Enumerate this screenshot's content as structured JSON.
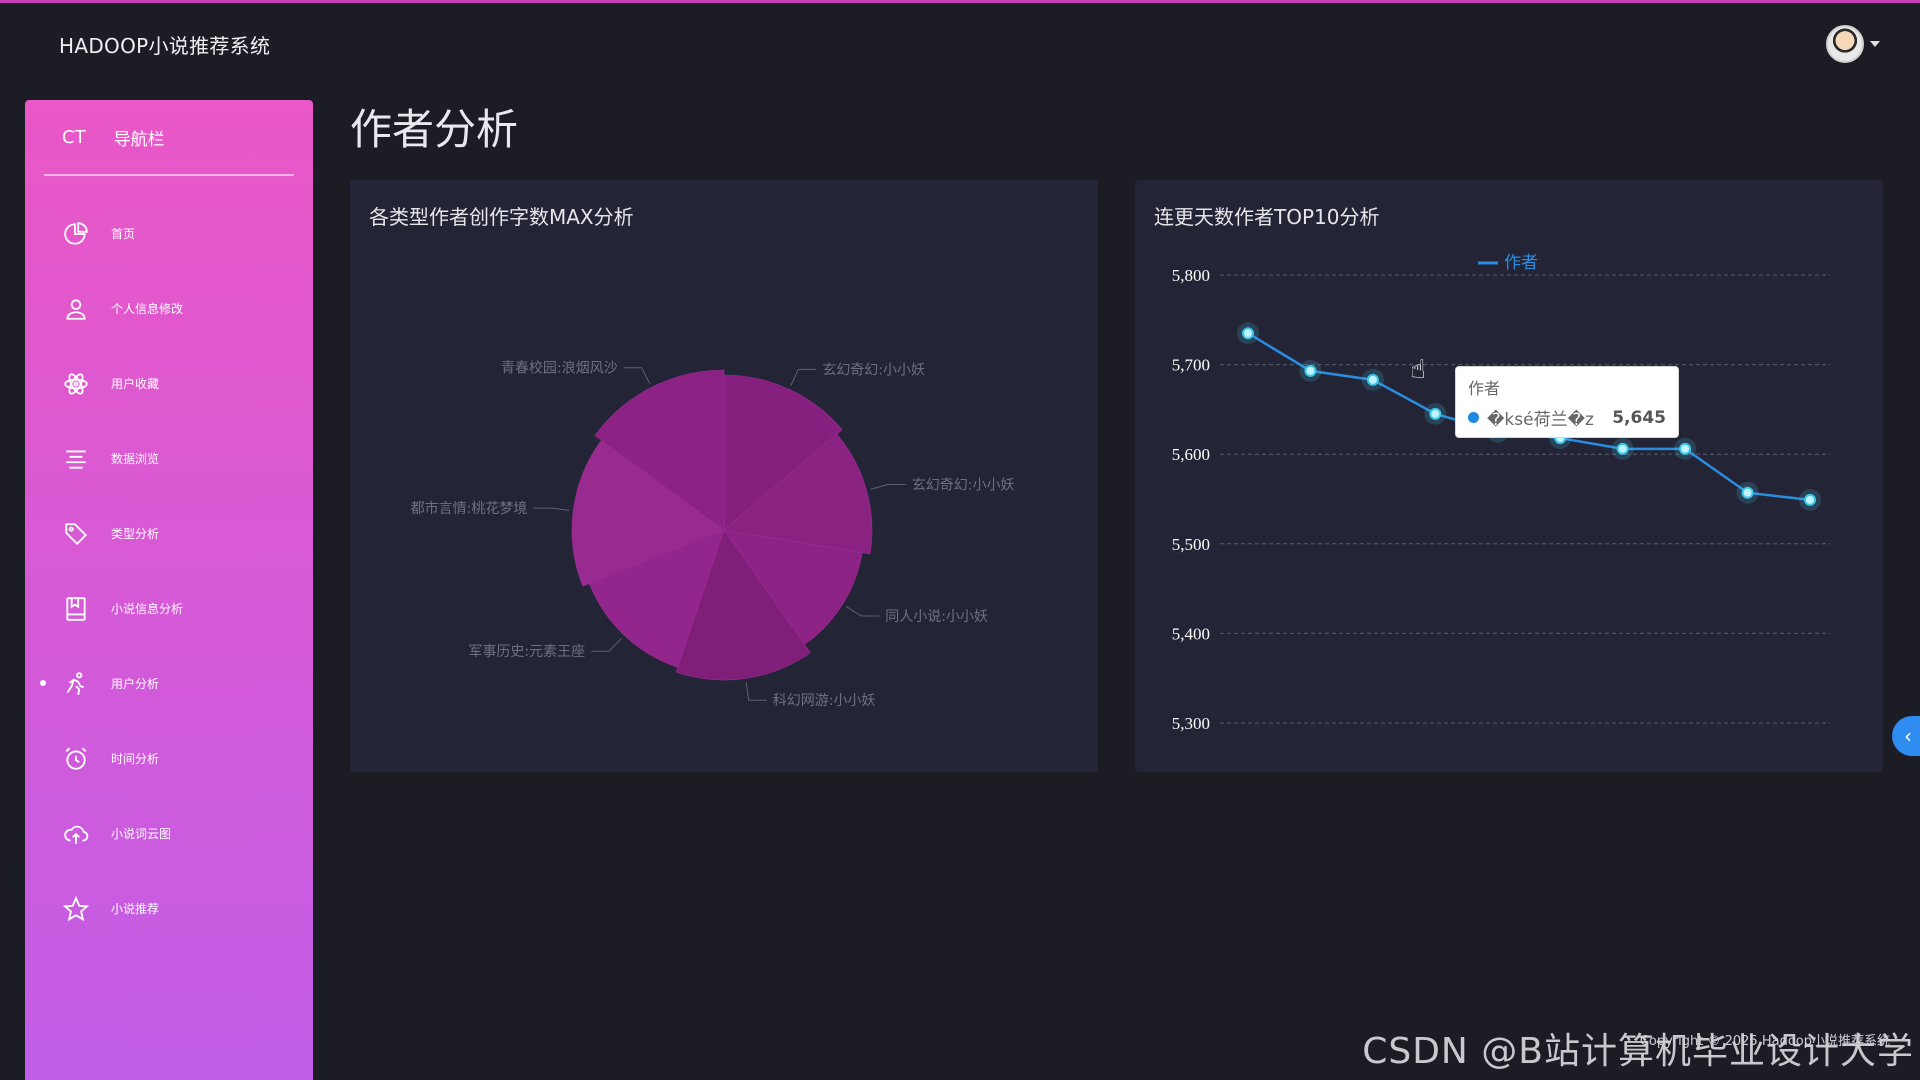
{
  "app": {
    "brand": "HADOOP小说推荐系统"
  },
  "sidebar": {
    "ct": "CT",
    "title": "导航栏",
    "items": [
      {
        "label": "首页",
        "icon": "pie-chart-icon"
      },
      {
        "label": "个人信息修改",
        "icon": "user-icon"
      },
      {
        "label": "用户收藏",
        "icon": "atom-icon"
      },
      {
        "label": "数据浏览",
        "icon": "list-icon"
      },
      {
        "label": "类型分析",
        "icon": "tag-icon"
      },
      {
        "label": "小说信息分析",
        "icon": "book-icon"
      },
      {
        "label": "用户分析",
        "icon": "running-person-icon",
        "active": true
      },
      {
        "label": "时间分析",
        "icon": "alarm-clock-icon"
      },
      {
        "label": "小说词云图",
        "icon": "cloud-upload-icon"
      },
      {
        "label": "小说推荐",
        "icon": "star-icon"
      }
    ]
  },
  "main": {
    "title": "作者分析"
  },
  "chart_data": [
    {
      "type": "pie",
      "title": "各类型作者创作字数MAX分析",
      "slices": [
        {
          "label": "玄幻奇幻:小小妖",
          "value": 12
        },
        {
          "label": "玄幻奇幻:小小妖",
          "value": 12
        },
        {
          "label": "同人小说:小小妖",
          "value": 11
        },
        {
          "label": "科幻网游:小小妖",
          "value": 13
        },
        {
          "label": "军事历史:元素王座",
          "value": 12
        },
        {
          "label": "都市言情:桃花梦境",
          "value": 14
        },
        {
          "label": "青春校园:浪烟风沙",
          "value": 13
        }
      ],
      "colors": [
        "#86207e",
        "#8a2282",
        "#8e2386",
        "#7f1f79",
        "#93268c",
        "#982a90",
        "#8c2384"
      ]
    },
    {
      "type": "line",
      "title": "连更天数作者TOP10分析",
      "series": [
        {
          "name": "作者",
          "values": [
            5735,
            5693,
            5683,
            5645,
            5625,
            5618,
            5606,
            5606,
            5557,
            5549
          ]
        }
      ],
      "y_ticks": [
        "5,800",
        "5,700",
        "5,600",
        "5,500",
        "5,400",
        "5,300"
      ],
      "ylim": [
        5300,
        5800
      ],
      "grid": true,
      "legend": "top-center",
      "color": "#2a8de0"
    }
  ],
  "tooltip": {
    "title": "作者",
    "name": "�ksé荷兰�z",
    "value": "5,645"
  },
  "footer": {
    "copyright": "Copyright © 2025 Hadoop小说推荐系统",
    "watermark": "CSDN @B站计算机毕业设计大学"
  },
  "toggle": {
    "glyph": "‹"
  }
}
